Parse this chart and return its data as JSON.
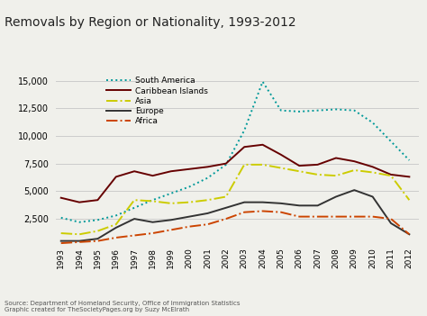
{
  "title": "Removals by Region or Nationality, 1993-2012",
  "years": [
    1993,
    1994,
    1995,
    1996,
    1997,
    1998,
    1999,
    2000,
    2001,
    2002,
    2003,
    2004,
    2005,
    2006,
    2007,
    2008,
    2009,
    2010,
    2011,
    2012
  ],
  "south_america": [
    2600,
    2200,
    2400,
    2800,
    3500,
    4200,
    4800,
    5400,
    6200,
    7400,
    10500,
    14900,
    12300,
    12200,
    12300,
    12400,
    12300,
    11200,
    9500,
    7800
  ],
  "caribbean_islands": [
    4400,
    4000,
    4200,
    6300,
    6800,
    6400,
    6800,
    7000,
    7200,
    7500,
    9000,
    9200,
    8300,
    7300,
    7400,
    8000,
    7700,
    7200,
    6500,
    6300
  ],
  "asia": [
    1200,
    1100,
    1400,
    2000,
    4200,
    4100,
    3900,
    4000,
    4200,
    4500,
    7400,
    7400,
    7100,
    6800,
    6500,
    6400,
    6900,
    6700,
    6400,
    4200
  ],
  "europe": [
    500,
    500,
    700,
    1700,
    2500,
    2200,
    2400,
    2700,
    3000,
    3500,
    4000,
    4000,
    3900,
    3700,
    3700,
    4500,
    5100,
    4500,
    2100,
    1100
  ],
  "africa": [
    300,
    400,
    500,
    800,
    1000,
    1200,
    1500,
    1800,
    2000,
    2500,
    3100,
    3200,
    3100,
    2700,
    2700,
    2700,
    2700,
    2700,
    2500,
    1100
  ],
  "south_america_color": "#009999",
  "caribbean_islands_color": "#660000",
  "asia_color": "#cccc00",
  "europe_color": "#333333",
  "africa_color": "#cc4400",
  "background_color": "#f0f0eb",
  "grid_color": "#cccccc",
  "ylim": [
    0,
    16000
  ],
  "yticks": [
    2500,
    5000,
    7500,
    10000,
    12500,
    15000
  ],
  "source_text": "Source: Department of Homeland Security, Office of Immigration Statistics\nGraphic created for TheSocietyPages.org by Suzy McElrath"
}
